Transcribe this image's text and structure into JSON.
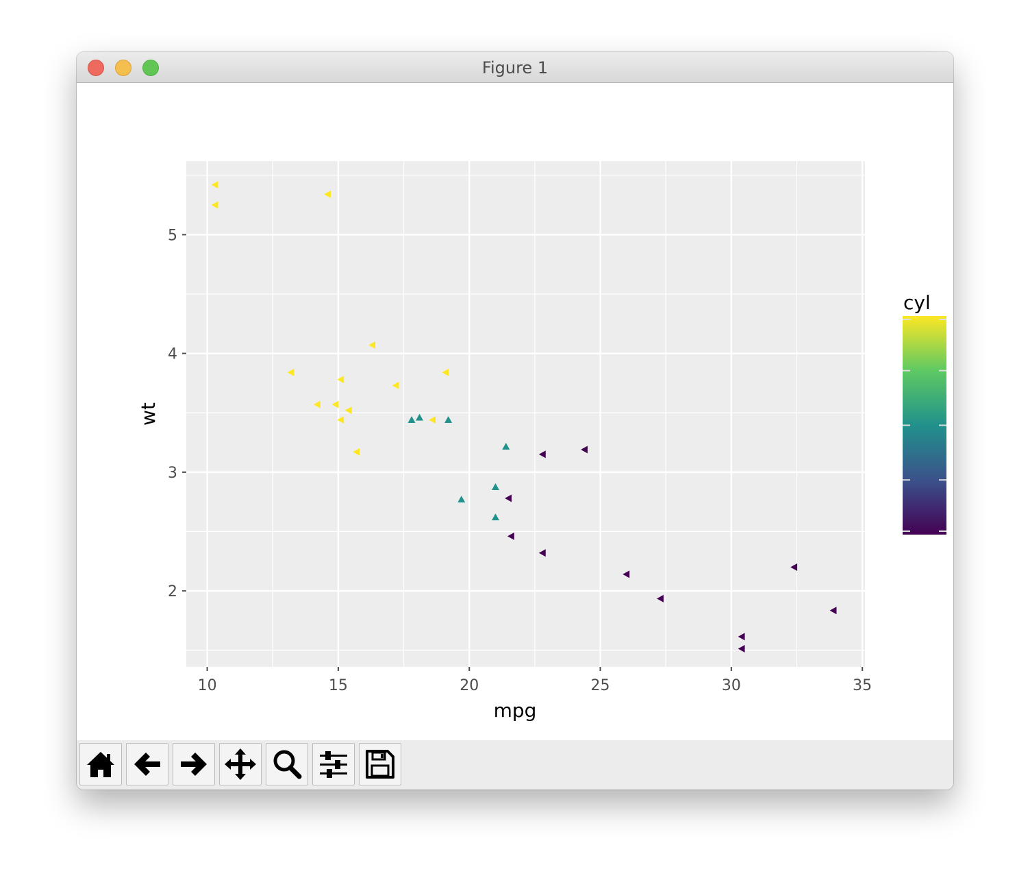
{
  "window": {
    "title": "Figure 1"
  },
  "toolbar": {
    "buttons": [
      {
        "name": "home-button",
        "icon": "home-icon"
      },
      {
        "name": "back-button",
        "icon": "arrow-left-icon"
      },
      {
        "name": "forward-button",
        "icon": "arrow-right-icon"
      },
      {
        "name": "pan-button",
        "icon": "move-icon"
      },
      {
        "name": "zoom-button",
        "icon": "magnifier-icon"
      },
      {
        "name": "configure-subplots-button",
        "icon": "sliders-icon"
      },
      {
        "name": "save-button",
        "icon": "floppy-disk-icon"
      }
    ]
  },
  "chart_data": {
    "type": "scatter",
    "xlabel": "mpg",
    "ylabel": "wt",
    "xlim": [
      9.2,
      35.1
    ],
    "ylim": [
      1.36,
      5.62
    ],
    "xticks": [
      10,
      15,
      20,
      25,
      30,
      35
    ],
    "yticks": [
      2,
      3,
      4,
      5
    ],
    "grid": true,
    "panel_background": "#ededed",
    "legend": {
      "title": "cyl",
      "type": "colorbar",
      "placement": "right",
      "range": [
        4,
        8
      ],
      "colors": [
        "#fde725",
        "#5ec962",
        "#21918c",
        "#3b528b",
        "#440154"
      ]
    },
    "points": [
      {
        "mpg": 10.3,
        "wt": 5.42,
        "cyl": 8,
        "shape": "left-triangle"
      },
      {
        "mpg": 10.3,
        "wt": 5.25,
        "cyl": 8,
        "shape": "left-triangle"
      },
      {
        "mpg": 14.6,
        "wt": 5.34,
        "cyl": 8,
        "shape": "left-triangle"
      },
      {
        "mpg": 16.3,
        "wt": 4.07,
        "cyl": 8,
        "shape": "left-triangle"
      },
      {
        "mpg": 13.2,
        "wt": 3.84,
        "cyl": 8,
        "shape": "left-triangle"
      },
      {
        "mpg": 19.1,
        "wt": 3.84,
        "cyl": 8,
        "shape": "left-triangle"
      },
      {
        "mpg": 15.1,
        "wt": 3.78,
        "cyl": 8,
        "shape": "left-triangle"
      },
      {
        "mpg": 17.2,
        "wt": 3.73,
        "cyl": 8,
        "shape": "left-triangle"
      },
      {
        "mpg": 14.2,
        "wt": 3.57,
        "cyl": 8,
        "shape": "left-triangle"
      },
      {
        "mpg": 14.9,
        "wt": 3.57,
        "cyl": 8,
        "shape": "left-triangle"
      },
      {
        "mpg": 15.4,
        "wt": 3.52,
        "cyl": 8,
        "shape": "left-triangle"
      },
      {
        "mpg": 15.1,
        "wt": 3.44,
        "cyl": 8,
        "shape": "left-triangle"
      },
      {
        "mpg": 18.6,
        "wt": 3.44,
        "cyl": 8,
        "shape": "left-triangle"
      },
      {
        "mpg": 15.7,
        "wt": 3.17,
        "cyl": 8,
        "shape": "left-triangle"
      },
      {
        "mpg": 17.8,
        "wt": 3.44,
        "cyl": 6,
        "shape": "up-triangle"
      },
      {
        "mpg": 18.1,
        "wt": 3.46,
        "cyl": 6,
        "shape": "up-triangle"
      },
      {
        "mpg": 19.2,
        "wt": 3.44,
        "cyl": 6,
        "shape": "up-triangle"
      },
      {
        "mpg": 21.4,
        "wt": 3.215,
        "cyl": 6,
        "shape": "up-triangle"
      },
      {
        "mpg": 21.0,
        "wt": 2.875,
        "cyl": 6,
        "shape": "up-triangle"
      },
      {
        "mpg": 19.7,
        "wt": 2.77,
        "cyl": 6,
        "shape": "up-triangle"
      },
      {
        "mpg": 21.0,
        "wt": 2.62,
        "cyl": 6,
        "shape": "up-triangle"
      },
      {
        "mpg": 22.8,
        "wt": 3.15,
        "cyl": 4,
        "shape": "left-triangle"
      },
      {
        "mpg": 24.4,
        "wt": 3.19,
        "cyl": 4,
        "shape": "left-triangle"
      },
      {
        "mpg": 21.5,
        "wt": 2.78,
        "cyl": 4,
        "shape": "left-triangle"
      },
      {
        "mpg": 21.6,
        "wt": 2.46,
        "cyl": 4,
        "shape": "left-triangle"
      },
      {
        "mpg": 22.8,
        "wt": 2.32,
        "cyl": 4,
        "shape": "left-triangle"
      },
      {
        "mpg": 26.0,
        "wt": 2.14,
        "cyl": 4,
        "shape": "left-triangle"
      },
      {
        "mpg": 27.3,
        "wt": 1.935,
        "cyl": 4,
        "shape": "left-triangle"
      },
      {
        "mpg": 32.4,
        "wt": 2.2,
        "cyl": 4,
        "shape": "left-triangle"
      },
      {
        "mpg": 33.9,
        "wt": 1.835,
        "cyl": 4,
        "shape": "left-triangle"
      },
      {
        "mpg": 30.4,
        "wt": 1.615,
        "cyl": 4,
        "shape": "left-triangle"
      },
      {
        "mpg": 30.4,
        "wt": 1.513,
        "cyl": 4,
        "shape": "left-triangle"
      }
    ]
  }
}
